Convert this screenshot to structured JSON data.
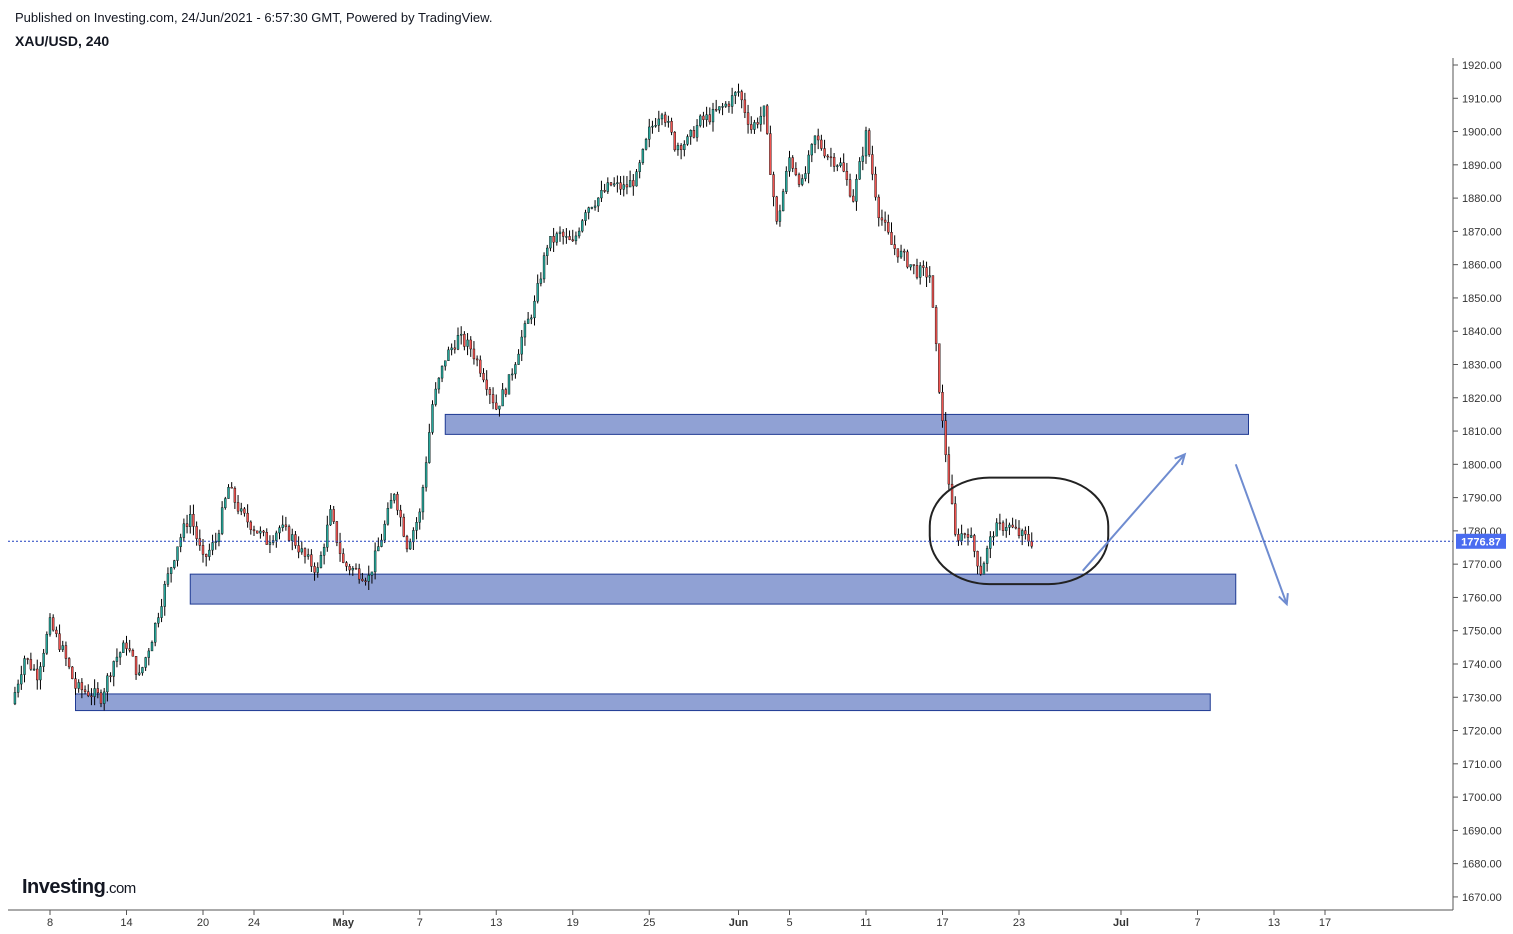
{
  "header": {
    "published": "Published on Investing.com, 24/Jun/2021 - 6:57:30 GMT, Powered by TradingView.",
    "symbol": "XAU/USD, 240"
  },
  "logo": {
    "brand": "Investing",
    "suffix": ".com"
  },
  "colors": {
    "up": "#26a69a",
    "down": "#ef5350",
    "wick": "#000000",
    "zone_fill": "#8a9cd2",
    "zone_stroke": "#1f3a93",
    "arrow": "#6f8cd0",
    "price_label_bg": "#4a6cf0",
    "axis": "#555555"
  },
  "chart_data": {
    "type": "candlestick",
    "ylim": [
      1665,
      1922
    ],
    "yticks": [
      1920,
      1910,
      1900,
      1890,
      1880,
      1870,
      1860,
      1850,
      1840,
      1830,
      1820,
      1810,
      1800,
      1790,
      1780,
      1770,
      1760,
      1750,
      1740,
      1730,
      1720,
      1710,
      1700,
      1690,
      1680,
      1670
    ],
    "ytick_labels": [
      "1920.00",
      "1910.00",
      "1900.00",
      "1890.00",
      "1880.00",
      "1870.00",
      "1860.00",
      "1850.00",
      "1840.00",
      "1830.00",
      "1820.00",
      "1810.00",
      "1800.00",
      "1790.00",
      "1780.00",
      "1770.00",
      "1760.00",
      "1750.00",
      "1740.00",
      "1730.00",
      "1720.00",
      "1710.00",
      "1700.00",
      "1690.00",
      "1680.00",
      "1670.00"
    ],
    "xticks": [
      {
        "label": "8",
        "bold": false,
        "date": "2021-04-08"
      },
      {
        "label": "14",
        "bold": false,
        "date": "2021-04-14"
      },
      {
        "label": "20",
        "bold": false,
        "date": "2021-04-20"
      },
      {
        "label": "24",
        "bold": false,
        "date": "2021-04-24"
      },
      {
        "label": "May",
        "bold": true,
        "date": "2021-05-01"
      },
      {
        "label": "7",
        "bold": false,
        "date": "2021-05-07"
      },
      {
        "label": "13",
        "bold": false,
        "date": "2021-05-13"
      },
      {
        "label": "19",
        "bold": false,
        "date": "2021-05-19"
      },
      {
        "label": "25",
        "bold": false,
        "date": "2021-05-25"
      },
      {
        "label": "Jun",
        "bold": true,
        "date": "2021-06-01"
      },
      {
        "label": "5",
        "bold": false,
        "date": "2021-06-05"
      },
      {
        "label": "11",
        "bold": false,
        "date": "2021-06-11"
      },
      {
        "label": "17",
        "bold": false,
        "date": "2021-06-17"
      },
      {
        "label": "23",
        "bold": false,
        "date": "2021-06-23"
      },
      {
        "label": "Jul",
        "bold": true,
        "date": "2021-07-01"
      },
      {
        "label": "7",
        "bold": false,
        "date": "2021-07-07"
      },
      {
        "label": "13",
        "bold": false,
        "date": "2021-07-13"
      },
      {
        "label": "17",
        "bold": false,
        "date": "2021-07-17"
      }
    ],
    "last_price": 1776.87,
    "last_price_label": "1776.87",
    "close_path": [
      [
        "2021-04-05",
        1728
      ],
      [
        "2021-04-06",
        1742
      ],
      [
        "2021-04-07",
        1737
      ],
      [
        "2021-04-08",
        1752
      ],
      [
        "2021-04-09",
        1744
      ],
      [
        "2021-04-10",
        1733
      ],
      [
        "2021-04-12",
        1730
      ],
      [
        "2021-04-13",
        1741
      ],
      [
        "2021-04-14",
        1746
      ],
      [
        "2021-04-15",
        1736
      ],
      [
        "2021-04-16",
        1748
      ],
      [
        "2021-04-17",
        1763
      ],
      [
        "2021-04-18",
        1776
      ],
      [
        "2021-04-19",
        1785
      ],
      [
        "2021-04-20",
        1771
      ],
      [
        "2021-04-21",
        1777
      ],
      [
        "2021-04-22",
        1793
      ],
      [
        "2021-04-23",
        1785
      ],
      [
        "2021-04-24",
        1781
      ],
      [
        "2021-04-25",
        1777
      ],
      [
        "2021-04-26",
        1781
      ],
      [
        "2021-04-27",
        1778
      ],
      [
        "2021-04-28",
        1772
      ],
      [
        "2021-04-29",
        1768
      ],
      [
        "2021-04-30",
        1785
      ],
      [
        "2021-05-01",
        1770
      ],
      [
        "2021-05-03",
        1766
      ],
      [
        "2021-05-04",
        1778
      ],
      [
        "2021-05-05",
        1792
      ],
      [
        "2021-05-06",
        1776
      ],
      [
        "2021-05-07",
        1785
      ],
      [
        "2021-05-08",
        1818
      ],
      [
        "2021-05-09",
        1832
      ],
      [
        "2021-05-10",
        1838
      ],
      [
        "2021-05-11",
        1835
      ],
      [
        "2021-05-12",
        1827
      ],
      [
        "2021-05-13",
        1817
      ],
      [
        "2021-05-14",
        1825
      ],
      [
        "2021-05-15",
        1838
      ],
      [
        "2021-05-16",
        1848
      ],
      [
        "2021-05-17",
        1866
      ],
      [
        "2021-05-18",
        1869
      ],
      [
        "2021-05-19",
        1866
      ],
      [
        "2021-05-20",
        1877
      ],
      [
        "2021-05-21",
        1880
      ],
      [
        "2021-05-22",
        1884
      ],
      [
        "2021-05-23",
        1883
      ],
      [
        "2021-05-24",
        1886
      ],
      [
        "2021-05-25",
        1900
      ],
      [
        "2021-05-26",
        1907
      ],
      [
        "2021-05-27",
        1896
      ],
      [
        "2021-05-28",
        1897
      ],
      [
        "2021-05-29",
        1903
      ],
      [
        "2021-05-30",
        1905
      ],
      [
        "2021-05-31",
        1908
      ],
      [
        "2021-06-01",
        1912
      ],
      [
        "2021-06-02",
        1901
      ],
      [
        "2021-06-03",
        1906
      ],
      [
        "2021-06-04",
        1872
      ],
      [
        "2021-06-05",
        1892
      ],
      [
        "2021-06-06",
        1884
      ],
      [
        "2021-06-07",
        1898
      ],
      [
        "2021-06-08",
        1893
      ],
      [
        "2021-06-09",
        1890
      ],
      [
        "2021-06-10",
        1880
      ],
      [
        "2021-06-11",
        1899
      ],
      [
        "2021-06-12",
        1876
      ],
      [
        "2021-06-13",
        1866
      ],
      [
        "2021-06-14",
        1862
      ],
      [
        "2021-06-15",
        1858
      ],
      [
        "2021-06-16",
        1857
      ],
      [
        "2021-06-17",
        1812
      ],
      [
        "2021-06-18",
        1778
      ],
      [
        "2021-06-19",
        1780
      ],
      [
        "2021-06-20",
        1768
      ],
      [
        "2021-06-21",
        1780
      ],
      [
        "2021-06-22",
        1782
      ],
      [
        "2021-06-23",
        1779
      ],
      [
        "2021-06-24",
        1776.87
      ]
    ],
    "zones": [
      {
        "from": "2021-05-09",
        "to": "2021-07-11",
        "low": 1809,
        "high": 1815
      },
      {
        "from": "2021-04-19",
        "to": "2021-07-10",
        "low": 1758,
        "high": 1767
      },
      {
        "from": "2021-04-10",
        "to": "2021-07-08",
        "low": 1726,
        "high": 1731
      }
    ],
    "ellipse": {
      "from": "2021-06-16",
      "to": "2021-06-30",
      "low": 1764,
      "high": 1796
    },
    "arrows": [
      {
        "from": [
          "2021-06-28",
          1768
        ],
        "to": [
          "2021-07-06",
          1803
        ]
      },
      {
        "from": [
          "2021-07-10",
          1800
        ],
        "to": [
          "2021-07-14",
          1758
        ]
      }
    ]
  }
}
